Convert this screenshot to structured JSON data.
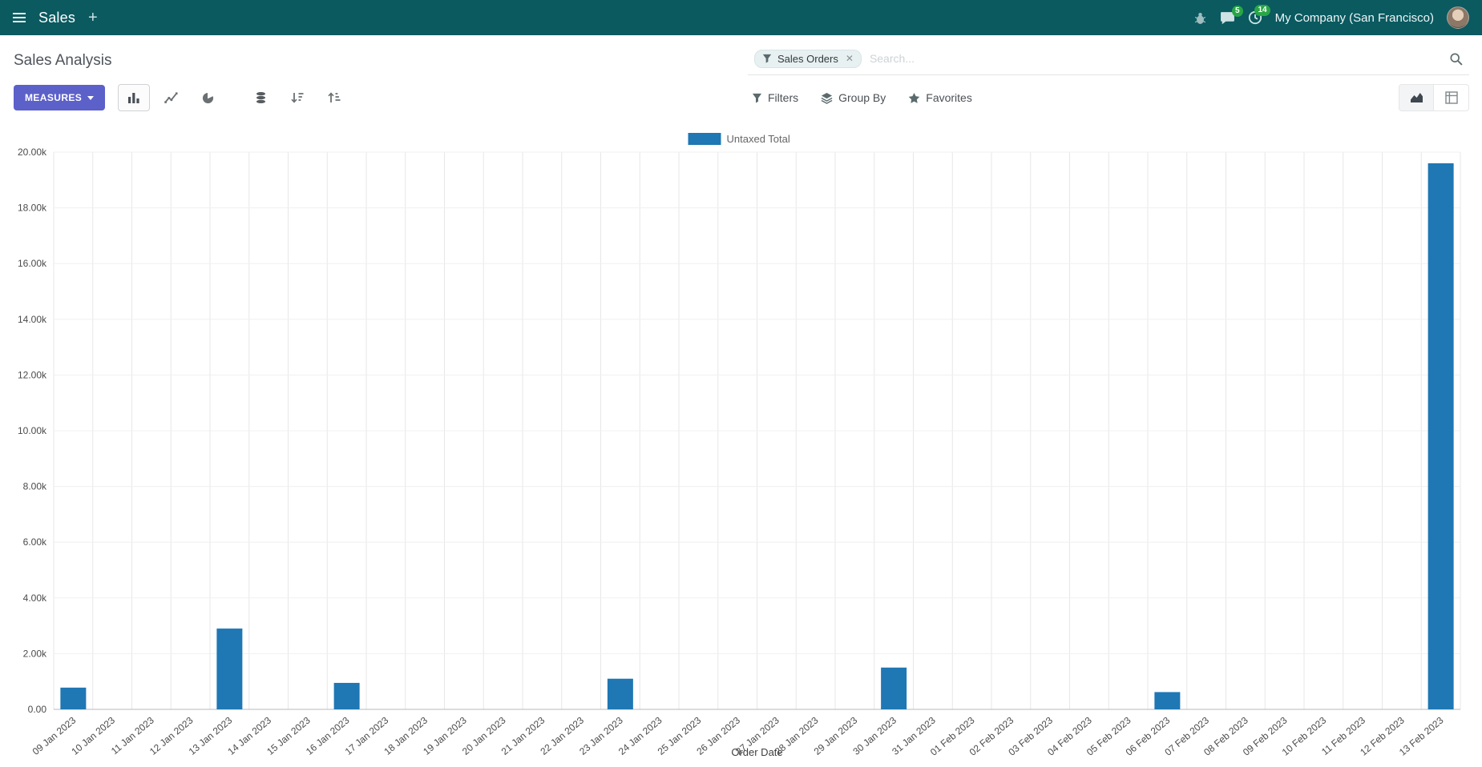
{
  "navbar": {
    "app_name": "Sales",
    "plus": "+",
    "systray": {
      "messages_badge": "5",
      "activities_badge": "14",
      "company": "My Company (San Francisco)"
    }
  },
  "control_panel": {
    "breadcrumb_title": "Sales Analysis",
    "measures_button": {
      "label": "MEASURES",
      "icon": "caret-down-icon"
    },
    "chart_toolbar": {
      "bar_button_icon": "bar-chart-icon",
      "line_button_icon": "line-chart-icon",
      "pie_button_icon": "pie-chart-icon",
      "stacked_button_icon": "stacked-icon",
      "sort_desc_button_icon": "sort-descending-icon",
      "sort_asc_button_icon": "sort-ascending-icon"
    },
    "search": {
      "facet_label": "Sales Orders",
      "facet_icon": "filter-icon",
      "remove": "✕",
      "placeholder": "Search...",
      "search_icon": "magnifier-icon"
    },
    "filter_menu": {
      "label": "Filters",
      "icon": "filter-icon"
    },
    "groupby_menu": {
      "label": "Group By",
      "icon": "layers-icon"
    },
    "favorites_menu": {
      "label": "Favorites",
      "icon": "star-icon"
    },
    "view_switcher": {
      "graph_view_icon": "area-chart-icon",
      "pivot_view_icon": "pivot-table-icon"
    }
  },
  "chart_data": {
    "type": "bar",
    "title": "",
    "legend": [
      "Untaxed Total"
    ],
    "series_color": "#1f77b4",
    "xlabel": "Order Date",
    "ylabel": "",
    "ylim": [
      0,
      20000
    ],
    "grid": true,
    "legend_position": "top-center",
    "ytick_labels": [
      "0.00",
      "2.00k",
      "4.00k",
      "6.00k",
      "8.00k",
      "10.00k",
      "12.00k",
      "14.00k",
      "16.00k",
      "18.00k",
      "20.00k"
    ],
    "categories": [
      "09 Jan 2023",
      "10 Jan 2023",
      "11 Jan 2023",
      "12 Jan 2023",
      "13 Jan 2023",
      "14 Jan 2023",
      "15 Jan 2023",
      "16 Jan 2023",
      "17 Jan 2023",
      "18 Jan 2023",
      "19 Jan 2023",
      "20 Jan 2023",
      "21 Jan 2023",
      "22 Jan 2023",
      "23 Jan 2023",
      "24 Jan 2023",
      "25 Jan 2023",
      "26 Jan 2023",
      "27 Jan 2023",
      "28 Jan 2023",
      "29 Jan 2023",
      "30 Jan 2023",
      "31 Jan 2023",
      "01 Feb 2023",
      "02 Feb 2023",
      "03 Feb 2023",
      "04 Feb 2023",
      "05 Feb 2023",
      "06 Feb 2023",
      "07 Feb 2023",
      "08 Feb 2023",
      "09 Feb 2023",
      "10 Feb 2023",
      "11 Feb 2023",
      "12 Feb 2023",
      "13 Feb 2023"
    ],
    "series": [
      {
        "name": "Untaxed Total",
        "values": [
          780,
          0,
          0,
          0,
          2900,
          0,
          0,
          950,
          0,
          0,
          0,
          0,
          0,
          0,
          1100,
          0,
          0,
          0,
          0,
          0,
          0,
          1500,
          0,
          0,
          0,
          0,
          0,
          0,
          620,
          0,
          0,
          0,
          0,
          0,
          0,
          19600
        ]
      }
    ]
  }
}
